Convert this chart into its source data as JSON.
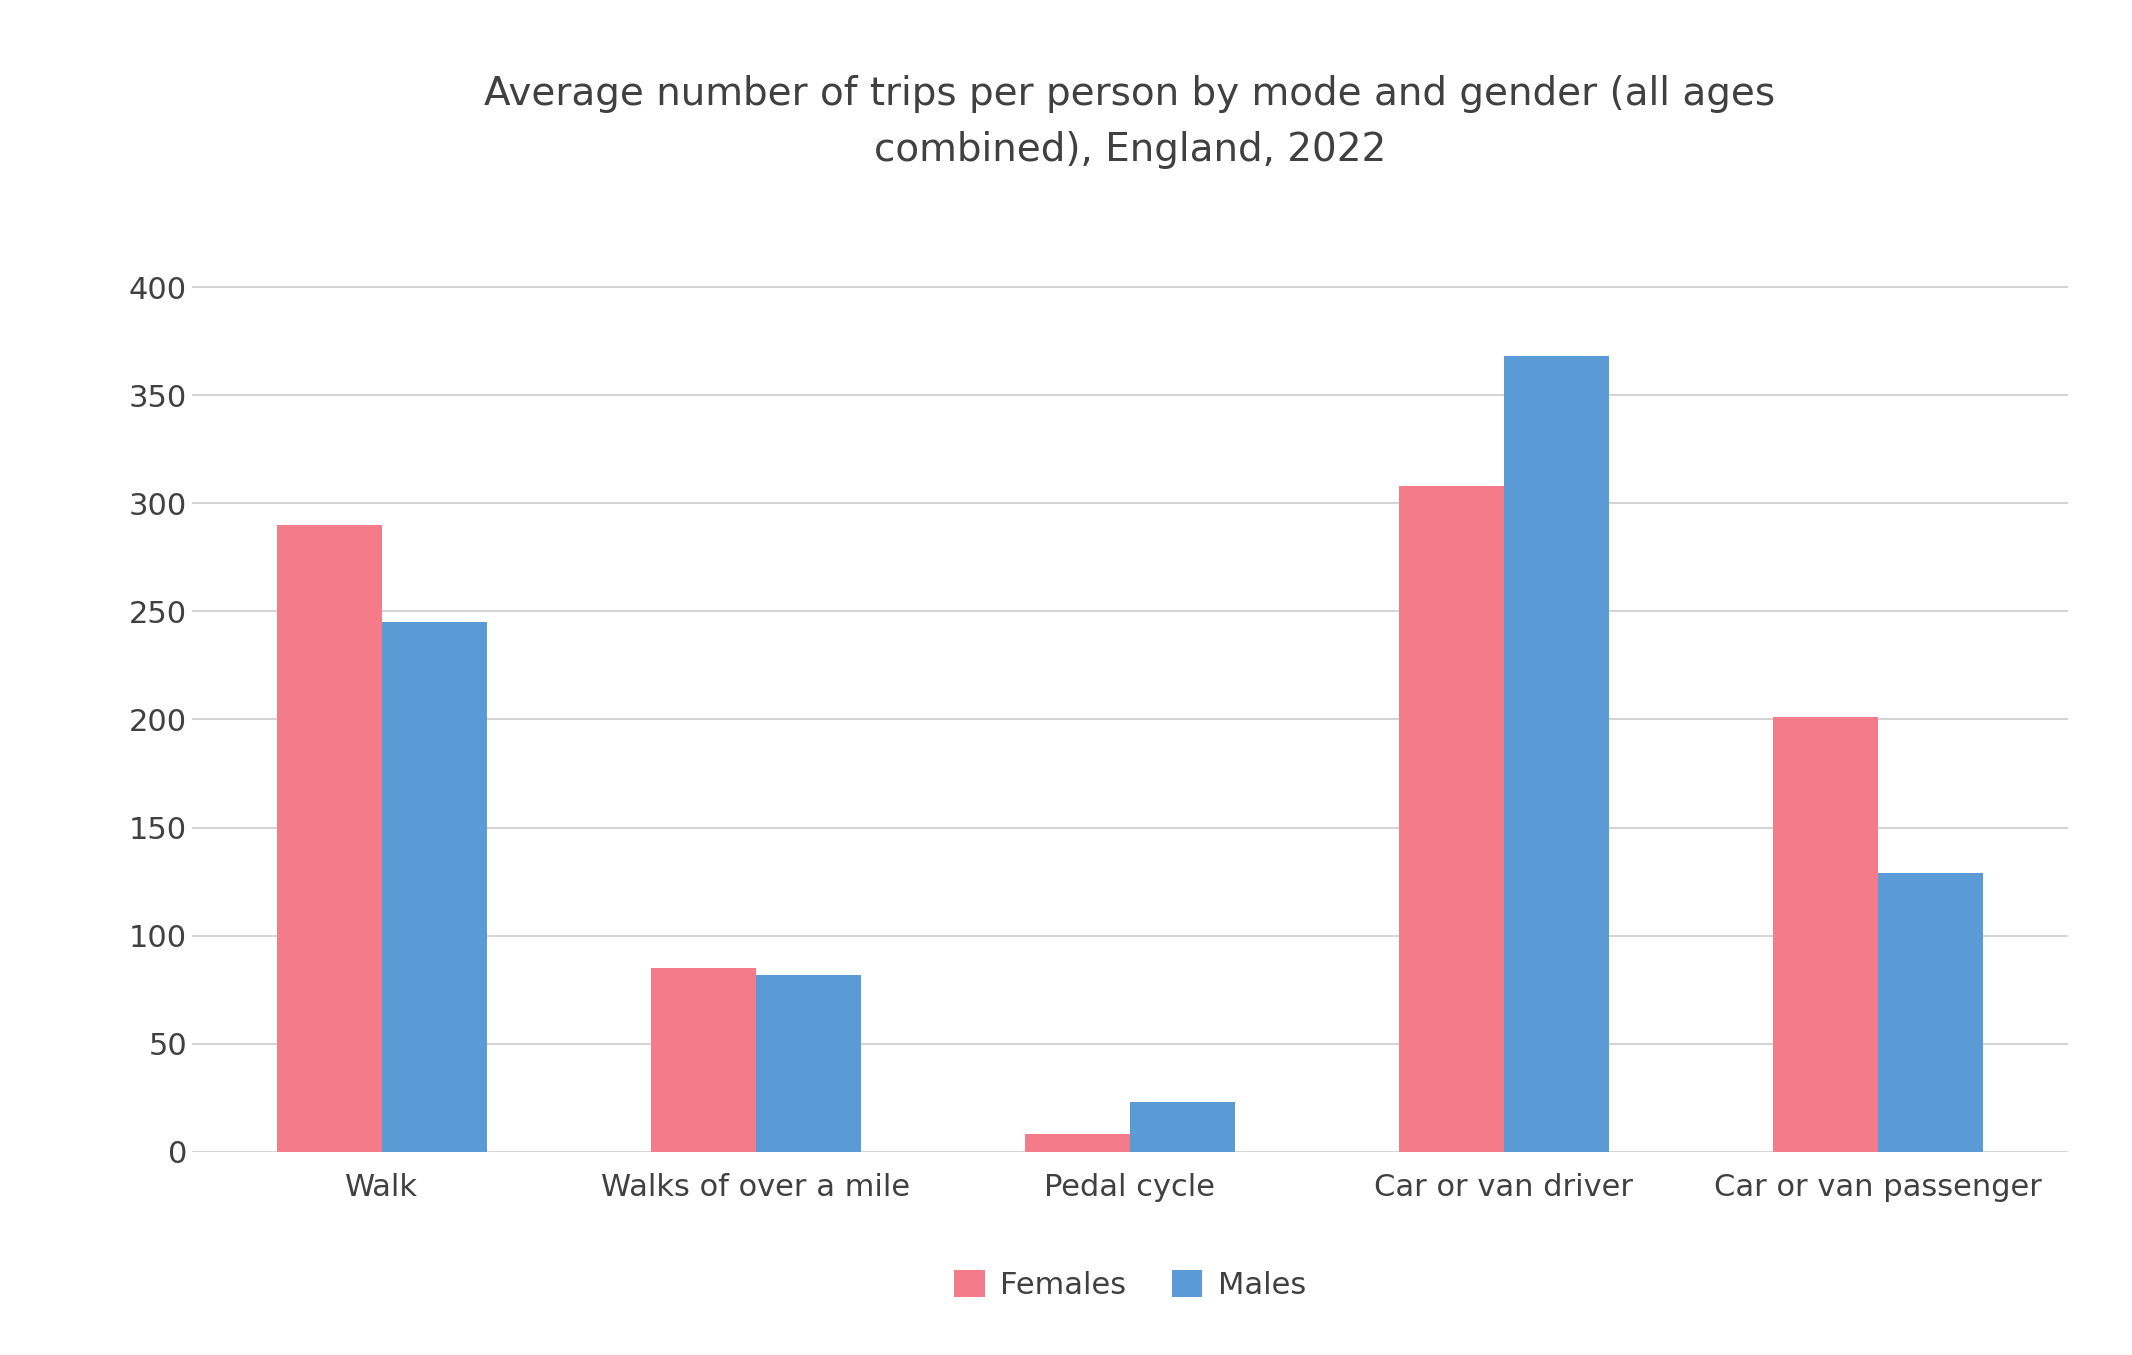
{
  "title": "Average number of trips per person by mode and gender (all ages\ncombined), England, 2022",
  "categories": [
    "Walk",
    "Walks of over a mile",
    "Pedal cycle",
    "Car or van driver",
    "Car or van passenger"
  ],
  "females": [
    290,
    85,
    8,
    308,
    201
  ],
  "males": [
    245,
    82,
    23,
    368,
    129
  ],
  "female_color": "#F47C8A",
  "male_color": "#5B9BD5",
  "ylim": [
    0,
    420
  ],
  "yticks": [
    0,
    50,
    100,
    150,
    200,
    250,
    300,
    350,
    400
  ],
  "legend_females": "Females",
  "legend_males": "Males",
  "title_fontsize": 28,
  "tick_fontsize": 22,
  "legend_fontsize": 22,
  "bar_width": 0.28,
  "background_color": "#ffffff",
  "grid_color": "#cccccc",
  "text_color": "#404040"
}
